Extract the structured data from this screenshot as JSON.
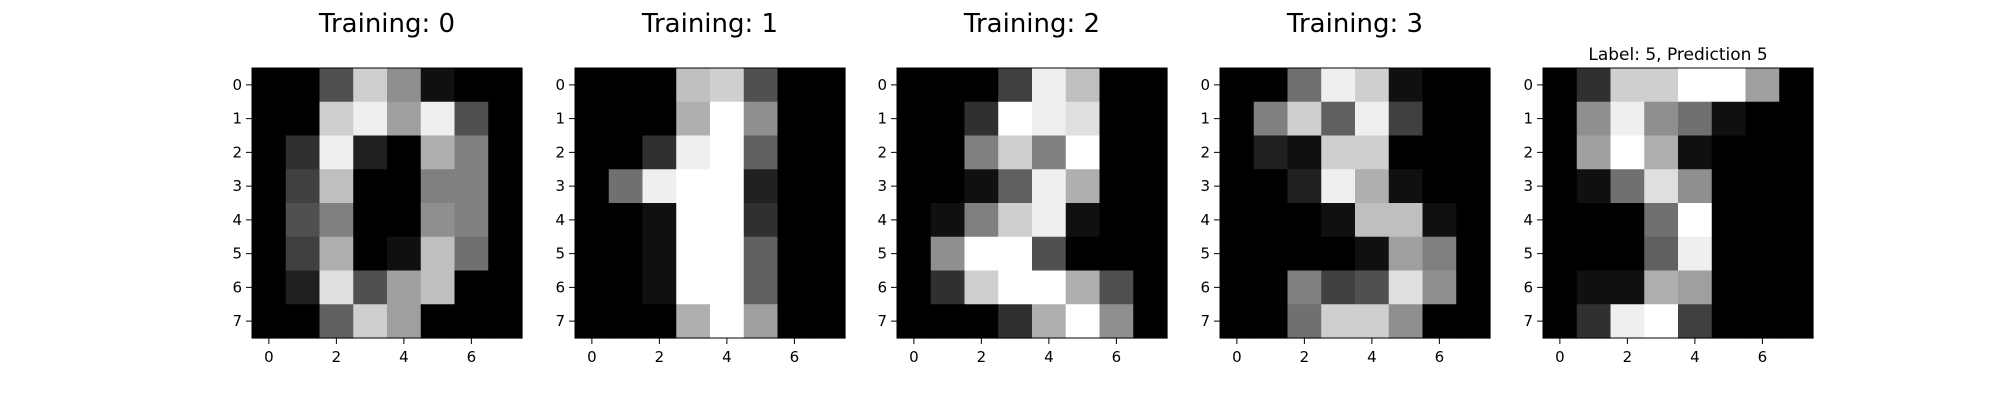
{
  "chart_data": [
    {
      "type": "heatmap",
      "title": "Training: 0",
      "colormap": "gray_r",
      "vmin": 0,
      "vmax": 16,
      "xticks": [
        "0",
        "2",
        "4",
        "6"
      ],
      "yticks": [
        "0",
        "1",
        "2",
        "3",
        "4",
        "5",
        "6",
        "7"
      ],
      "values": [
        [
          0,
          0,
          5,
          13,
          9,
          1,
          0,
          0
        ],
        [
          0,
          0,
          13,
          15,
          10,
          15,
          5,
          0
        ],
        [
          0,
          3,
          15,
          2,
          0,
          11,
          8,
          0
        ],
        [
          0,
          4,
          12,
          0,
          0,
          8,
          8,
          0
        ],
        [
          0,
          5,
          8,
          0,
          0,
          9,
          8,
          0
        ],
        [
          0,
          4,
          11,
          0,
          1,
          12,
          7,
          0
        ],
        [
          0,
          2,
          14,
          5,
          10,
          12,
          0,
          0
        ],
        [
          0,
          0,
          6,
          13,
          10,
          0,
          0,
          0
        ]
      ]
    },
    {
      "type": "heatmap",
      "title": "Training: 1",
      "colormap": "gray_r",
      "vmin": 0,
      "vmax": 16,
      "xticks": [
        "0",
        "2",
        "4",
        "6"
      ],
      "yticks": [
        "0",
        "1",
        "2",
        "3",
        "4",
        "5",
        "6",
        "7"
      ],
      "values": [
        [
          0,
          0,
          0,
          12,
          13,
          5,
          0,
          0
        ],
        [
          0,
          0,
          0,
          11,
          16,
          9,
          0,
          0
        ],
        [
          0,
          0,
          3,
          15,
          16,
          6,
          0,
          0
        ],
        [
          0,
          7,
          15,
          16,
          16,
          2,
          0,
          0
        ],
        [
          0,
          0,
          1,
          16,
          16,
          3,
          0,
          0
        ],
        [
          0,
          0,
          1,
          16,
          16,
          6,
          0,
          0
        ],
        [
          0,
          0,
          1,
          16,
          16,
          6,
          0,
          0
        ],
        [
          0,
          0,
          0,
          11,
          16,
          10,
          0,
          0
        ]
      ]
    },
    {
      "type": "heatmap",
      "title": "Training: 2",
      "colormap": "gray_r",
      "vmin": 0,
      "vmax": 16,
      "xticks": [
        "0",
        "2",
        "4",
        "6"
      ],
      "yticks": [
        "0",
        "1",
        "2",
        "3",
        "4",
        "5",
        "6",
        "7"
      ],
      "values": [
        [
          0,
          0,
          0,
          4,
          15,
          12,
          0,
          0
        ],
        [
          0,
          0,
          3,
          16,
          15,
          14,
          0,
          0
        ],
        [
          0,
          0,
          8,
          13,
          8,
          16,
          0,
          0
        ],
        [
          0,
          0,
          1,
          6,
          15,
          11,
          0,
          0
        ],
        [
          0,
          1,
          8,
          13,
          15,
          1,
          0,
          0
        ],
        [
          0,
          9,
          16,
          16,
          5,
          0,
          0,
          0
        ],
        [
          0,
          3,
          13,
          16,
          16,
          11,
          5,
          0
        ],
        [
          0,
          0,
          0,
          3,
          11,
          16,
          9,
          0
        ]
      ]
    },
    {
      "type": "heatmap",
      "title": "Training: 3",
      "colormap": "gray_r",
      "vmin": 0,
      "vmax": 16,
      "xticks": [
        "0",
        "2",
        "4",
        "6"
      ],
      "yticks": [
        "0",
        "1",
        "2",
        "3",
        "4",
        "5",
        "6",
        "7"
      ],
      "values": [
        [
          0,
          0,
          7,
          15,
          13,
          1,
          0,
          0
        ],
        [
          0,
          8,
          13,
          6,
          15,
          4,
          0,
          0
        ],
        [
          0,
          2,
          1,
          13,
          13,
          0,
          0,
          0
        ],
        [
          0,
          0,
          2,
          15,
          11,
          1,
          0,
          0
        ],
        [
          0,
          0,
          0,
          1,
          12,
          12,
          1,
          0
        ],
        [
          0,
          0,
          0,
          0,
          1,
          10,
          8,
          0
        ],
        [
          0,
          0,
          8,
          4,
          5,
          14,
          9,
          0
        ],
        [
          0,
          0,
          7,
          13,
          13,
          9,
          0,
          0
        ]
      ]
    },
    {
      "type": "heatmap",
      "title": "Label: 5, Prediction 5",
      "colormap": "gray_r",
      "vmin": 0,
      "vmax": 16,
      "xticks": [
        "0",
        "2",
        "4",
        "6"
      ],
      "yticks": [
        "0",
        "1",
        "2",
        "3",
        "4",
        "5",
        "6",
        "7"
      ],
      "values": [
        [
          0,
          3,
          13,
          13,
          16,
          16,
          10,
          0
        ],
        [
          0,
          9,
          15,
          9,
          7,
          1,
          0,
          0
        ],
        [
          0,
          10,
          16,
          11,
          1,
          0,
          0,
          0
        ],
        [
          0,
          1,
          7,
          14,
          9,
          0,
          0,
          0
        ],
        [
          0,
          0,
          0,
          7,
          16,
          0,
          0,
          0
        ],
        [
          0,
          0,
          0,
          6,
          15,
          0,
          0,
          0
        ],
        [
          0,
          1,
          1,
          11,
          10,
          0,
          0,
          0
        ],
        [
          0,
          3,
          15,
          16,
          4,
          0,
          0,
          0
        ]
      ]
    }
  ]
}
